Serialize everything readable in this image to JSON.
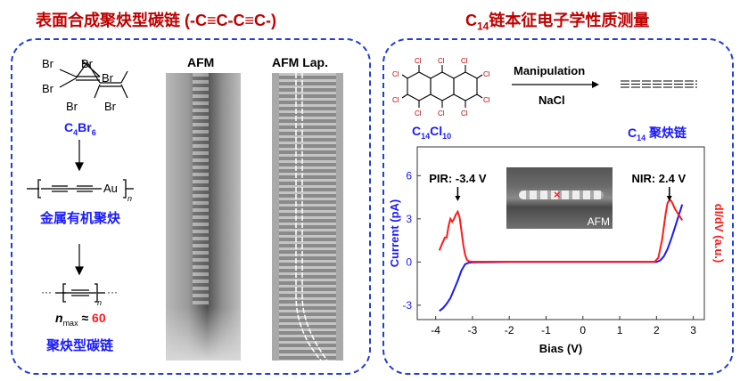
{
  "left": {
    "title": "表面合成聚炔型碳链 (-C≡C-C≡C-)",
    "precursor_label": "C4Br6",
    "precursor_formula": {
      "main": "C",
      "sub1": "4",
      "mid": "Br",
      "sub2": "6"
    },
    "br_atoms": [
      "Br",
      "Br",
      "Br",
      "Br",
      "Br",
      "Br"
    ],
    "organometallic_atom": "Au",
    "repeat_subscript": "n",
    "organometallic_label": "金属有机聚炔",
    "ellipsis": "···",
    "nmax": {
      "n": "n",
      "sub": "max",
      "approx": "≈",
      "value": "60"
    },
    "chain_label": "聚炔型碳链",
    "afm_label": "AFM",
    "afm_lap_label": "AFM Lap."
  },
  "right": {
    "title": {
      "main": "C",
      "sub": "14",
      "rest": "链本征电子学性质测量"
    },
    "reactant": {
      "main": "C",
      "sub1": "14",
      "mid": "Cl",
      "sub2": "10"
    },
    "cl_atom": "Cl",
    "arrow_top": "Manipulation",
    "arrow_bottom": "NaCl",
    "product": {
      "main": "C",
      "sub": "14",
      "rest": " 聚炔链"
    },
    "inset_label": "AFM"
  },
  "colors": {
    "title": "#c00000",
    "accent_blue": "#1a1aff",
    "current": "#1a1aff",
    "didv": "#ff1a1a",
    "border": "#1f3fd8"
  },
  "chart_data": {
    "type": "line",
    "xlabel": "Bias (V)",
    "ylabel": "Current (pA)",
    "y2label": "dI/dV (a.u.)",
    "xlim": [
      -4.5,
      3.3
    ],
    "ylim": [
      -4,
      8
    ],
    "xticks": [
      "-4",
      "-3",
      "-2",
      "-1",
      "0",
      "1",
      "2",
      "3"
    ],
    "xtick_values": [
      -4,
      -3,
      -2,
      -1,
      0,
      1,
      2,
      3
    ],
    "yticks": [
      "-3",
      "0",
      "3",
      "6"
    ],
    "ytick_values": [
      -3,
      0,
      3,
      6
    ],
    "grid": false,
    "annotations": [
      {
        "text": "PIR: -3.4 V",
        "x": -3.4
      },
      {
        "text": "NIR: 2.4 V",
        "x": 2.35
      }
    ],
    "series": [
      {
        "name": "Current (pA)",
        "color": "#1a1aff",
        "x": [
          -3.9,
          -3.8,
          -3.7,
          -3.6,
          -3.5,
          -3.4,
          -3.3,
          -3.2,
          -3.1,
          -3.0,
          -2.0,
          0,
          2.0,
          2.1,
          2.2,
          2.3,
          2.4,
          2.5,
          2.6,
          2.7
        ],
        "y": [
          -3.4,
          -3.2,
          -2.9,
          -2.5,
          -1.9,
          -1.3,
          -0.6,
          -0.15,
          -0.05,
          -0.03,
          0,
          0,
          0,
          0.1,
          0.4,
          0.9,
          1.6,
          2.4,
          3.2,
          4.0
        ]
      },
      {
        "name": "dI/dV (a.u.)",
        "color": "#ff1a1a",
        "x": [
          -3.9,
          -3.82,
          -3.75,
          -3.7,
          -3.65,
          -3.6,
          -3.55,
          -3.5,
          -3.45,
          -3.4,
          -3.35,
          -3.3,
          -3.25,
          -3.2,
          -3.15,
          -3.1,
          -3.0,
          0,
          1.95,
          2.05,
          2.15,
          2.25,
          2.3,
          2.35,
          2.4,
          2.45,
          2.5,
          2.6,
          2.7
        ],
        "y": [
          0.8,
          1.3,
          1.7,
          1.7,
          2.5,
          3.0,
          2.8,
          3.0,
          3.3,
          3.5,
          3.1,
          2.2,
          1.2,
          0.5,
          0.15,
          0.05,
          0.02,
          0.02,
          0.02,
          0.3,
          1.5,
          3.4,
          4.1,
          4.3,
          4.25,
          4.0,
          3.7,
          3.3,
          2.9
        ]
      }
    ]
  }
}
